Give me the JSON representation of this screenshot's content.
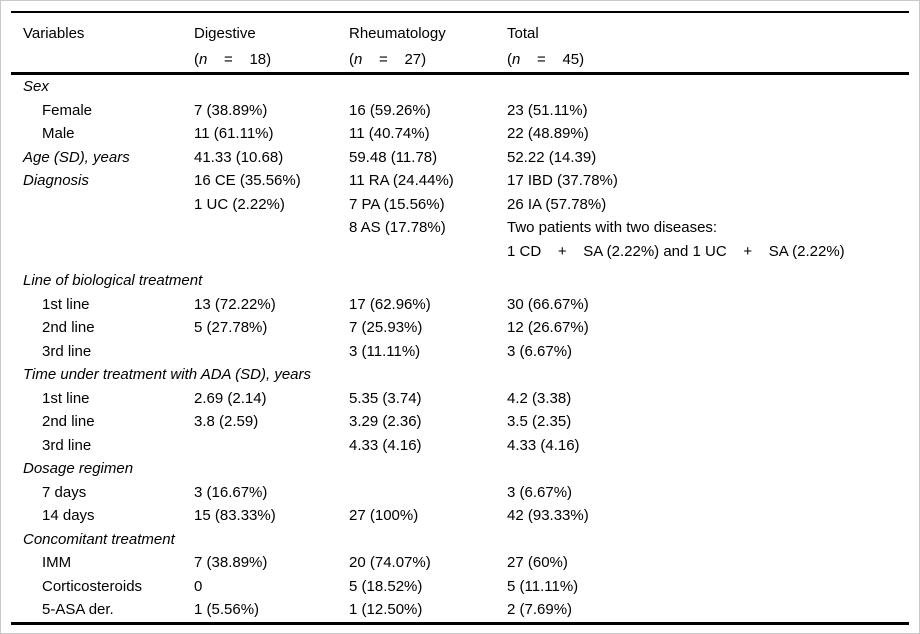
{
  "header": {
    "col1": "Variables",
    "col2": {
      "title": "Digestive",
      "paren": "(",
      "n": "n",
      "rest": "    =    18)"
    },
    "col3": {
      "title": "Rheumatology",
      "paren": "(",
      "n": "n",
      "rest": "    =    27)"
    },
    "col4": {
      "title": "Total",
      "paren": "(",
      "n": "n",
      "rest": "    =    45)"
    }
  },
  "rows": [
    {
      "label": "Sex"
    },
    {
      "label": "Female",
      "c1": "7 (38.89%)",
      "c2": "16 (59.26%)",
      "c3": "23 (51.11%)"
    },
    {
      "label": "Male",
      "c1": "11 (61.11%)",
      "c2": "11 (40.74%)",
      "c3": "22 (48.89%)"
    },
    {
      "label": "Age (SD), years",
      "c1": "41.33 (10.68)",
      "c2": "59.48 (11.78)",
      "c3": "52.22 (14.39)"
    },
    {
      "label": "Diagnosis",
      "c1": "16 CE (35.56%)",
      "c2": "11 RA (24.44%)",
      "c3": "17 IBD (37.78%)"
    },
    {
      "c1": "1 UC (2.22%)",
      "c2": "7 PA (15.56%)",
      "c3": "26 IA (57.78%)"
    },
    {
      "c2": "8 AS (17.78%)",
      "c3": "Two patients with two diseases:"
    },
    {
      "c3": "1 CD    +    SA (2.22%) and 1 UC    +    SA (2.22%)"
    },
    {
      "label": "Line of biological treatment"
    },
    {
      "label": "1st line",
      "c1": "13 (72.22%)",
      "c2": "17 (62.96%)",
      "c3": "30 (66.67%)"
    },
    {
      "label": "2nd line",
      "c1": "5 (27.78%)",
      "c2": "7 (25.93%)",
      "c3": "12 (26.67%)"
    },
    {
      "label": "3rd line",
      "c2": "3 (11.11%)",
      "c3": "3 (6.67%)"
    },
    {
      "label": "Time under treatment with ADA (SD), years"
    },
    {
      "label": "1st line",
      "c1": "2.69 (2.14)",
      "c2": "5.35 (3.74)",
      "c3": "4.2 (3.38)"
    },
    {
      "label": "2nd line",
      "c1": "3.8 (2.59)",
      "c2": "3.29 (2.36)",
      "c3": "3.5 (2.35)"
    },
    {
      "label": "3rd line",
      "c2": "4.33 (4.16)",
      "c3": "4.33 (4.16)"
    },
    {
      "label": "Dosage regimen"
    },
    {
      "label": "7 days",
      "c1": "3 (16.67%)",
      "c3": "3 (6.67%)"
    },
    {
      "label": "14 days",
      "c1": "15 (83.33%)",
      "c2": "27 (100%)",
      "c3": "42 (93.33%)"
    },
    {
      "label": "Concomitant treatment"
    },
    {
      "label": "IMM",
      "c1": "7 (38.89%)",
      "c2": "20 (74.07%)",
      "c3": "27 (60%)"
    },
    {
      "label": "Corticosteroids",
      "c1": "0",
      "c2": "5 (18.52%)",
      "c3": "5 (11.11%)"
    },
    {
      "label": "5-ASA der.",
      "c1": "1 (5.56%)",
      "c2": "1 (12.50%)",
      "c3": "2 (7.69%)"
    }
  ]
}
